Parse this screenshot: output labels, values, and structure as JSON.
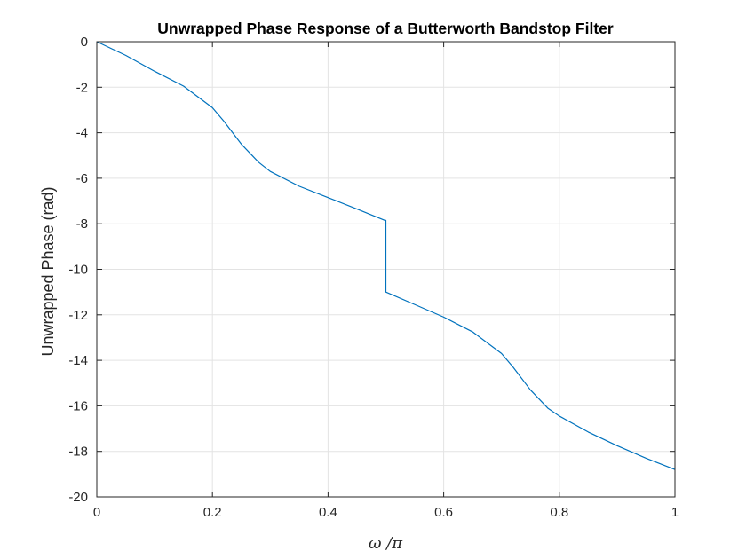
{
  "chart_data": {
    "type": "line",
    "title": "Unwrapped Phase Response of a Butterworth Bandstop Filter",
    "xlabel": "ω /π",
    "ylabel": "Unwrapped Phase (rad)",
    "xlim": [
      0,
      1
    ],
    "ylim": [
      -20,
      0
    ],
    "xticks": [
      "0",
      "0.2",
      "0.4",
      "0.6",
      "0.8",
      "1"
    ],
    "yticks": [
      "0",
      "-2",
      "-4",
      "-6",
      "-8",
      "-10",
      "-12",
      "-14",
      "-16",
      "-18",
      "-20"
    ],
    "grid": true,
    "line_color": "#0072BD",
    "series": [
      {
        "x": [
          0,
          0.05,
          0.1,
          0.15,
          0.2,
          0.22,
          0.25,
          0.28,
          0.3,
          0.35,
          0.4,
          0.45,
          0.498,
          0.5,
          0.55,
          0.6,
          0.65,
          0.7,
          0.72,
          0.75,
          0.78,
          0.8,
          0.85,
          0.9,
          0.95,
          1.0
        ],
        "y": [
          0,
          -0.6,
          -1.3,
          -1.95,
          -2.9,
          -3.5,
          -4.5,
          -5.3,
          -5.7,
          -6.35,
          -6.85,
          -7.35,
          -7.85,
          -11.0,
          -11.55,
          -12.1,
          -12.75,
          -13.7,
          -14.3,
          -15.3,
          -16.1,
          -16.45,
          -17.15,
          -17.75,
          -18.3,
          -18.8
        ]
      }
    ]
  }
}
